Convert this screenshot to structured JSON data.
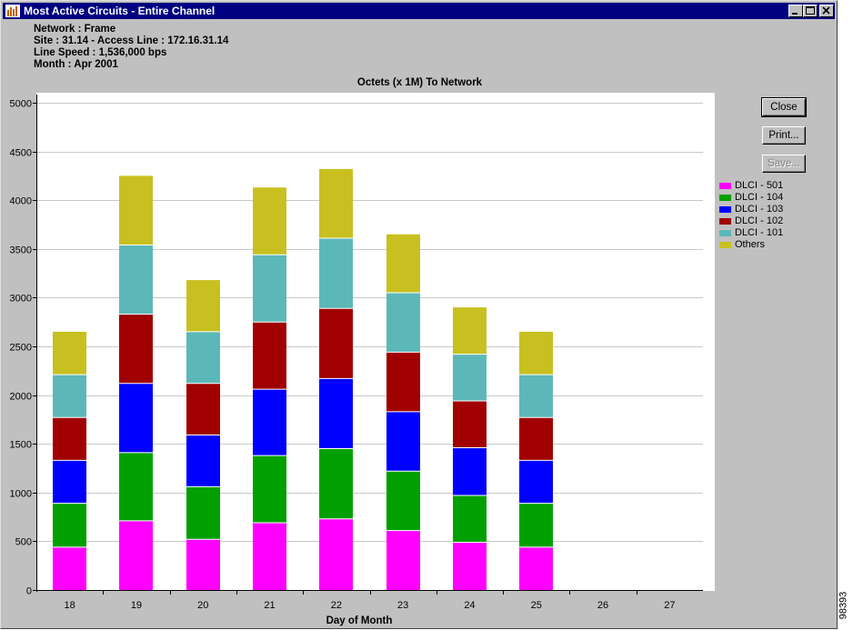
{
  "window": {
    "title": "Most Active Circuits - Entire Channel",
    "controls": {
      "minimize": "minimize",
      "maximize": "maximize",
      "close": "close"
    }
  },
  "info": {
    "network": "Network : Frame",
    "site": "Site : 31.14 - Access Line : 172.16.31.14",
    "line_speed": "Line Speed : 1,536,000 bps",
    "month": "Month : Apr 2001"
  },
  "buttons": {
    "close": "Close",
    "print": "Print...",
    "save": "Save..."
  },
  "side_label": "98393",
  "colors": {
    "DLCI - 501": "#ff00ff",
    "DLCI - 104": "#00a000",
    "DLCI - 103": "#0000ff",
    "DLCI - 102": "#a00000",
    "DLCI - 101": "#5cb8b8",
    "Others": "#c8c020"
  },
  "chart_data": {
    "type": "bar",
    "stacked": true,
    "title": "Octets (x 1M) To Network",
    "xlabel": "Day of Month",
    "ylabel": "",
    "ylim": [
      0,
      5000
    ],
    "yticks": [
      0,
      500,
      1000,
      1500,
      2000,
      2500,
      3000,
      3500,
      4000,
      4500,
      5000
    ],
    "grid": true,
    "legend_position": "right",
    "categories": [
      "18",
      "19",
      "20",
      "21",
      "22",
      "23",
      "24",
      "25",
      "26",
      "27"
    ],
    "series": [
      {
        "name": "DLCI - 501",
        "values": [
          440,
          710,
          520,
          690,
          730,
          610,
          490,
          440,
          0,
          0
        ]
      },
      {
        "name": "DLCI - 104",
        "values": [
          450,
          700,
          540,
          690,
          720,
          610,
          480,
          450,
          0,
          0
        ]
      },
      {
        "name": "DLCI - 103",
        "values": [
          440,
          710,
          530,
          680,
          720,
          610,
          490,
          440,
          0,
          0
        ]
      },
      {
        "name": "DLCI - 102",
        "values": [
          440,
          710,
          530,
          690,
          720,
          610,
          480,
          440,
          0,
          0
        ]
      },
      {
        "name": "DLCI - 101",
        "values": [
          440,
          710,
          530,
          690,
          720,
          610,
          480,
          440,
          0,
          0
        ]
      },
      {
        "name": "Others",
        "values": [
          440,
          710,
          530,
          690,
          710,
          600,
          480,
          440,
          0,
          0
        ]
      }
    ]
  }
}
